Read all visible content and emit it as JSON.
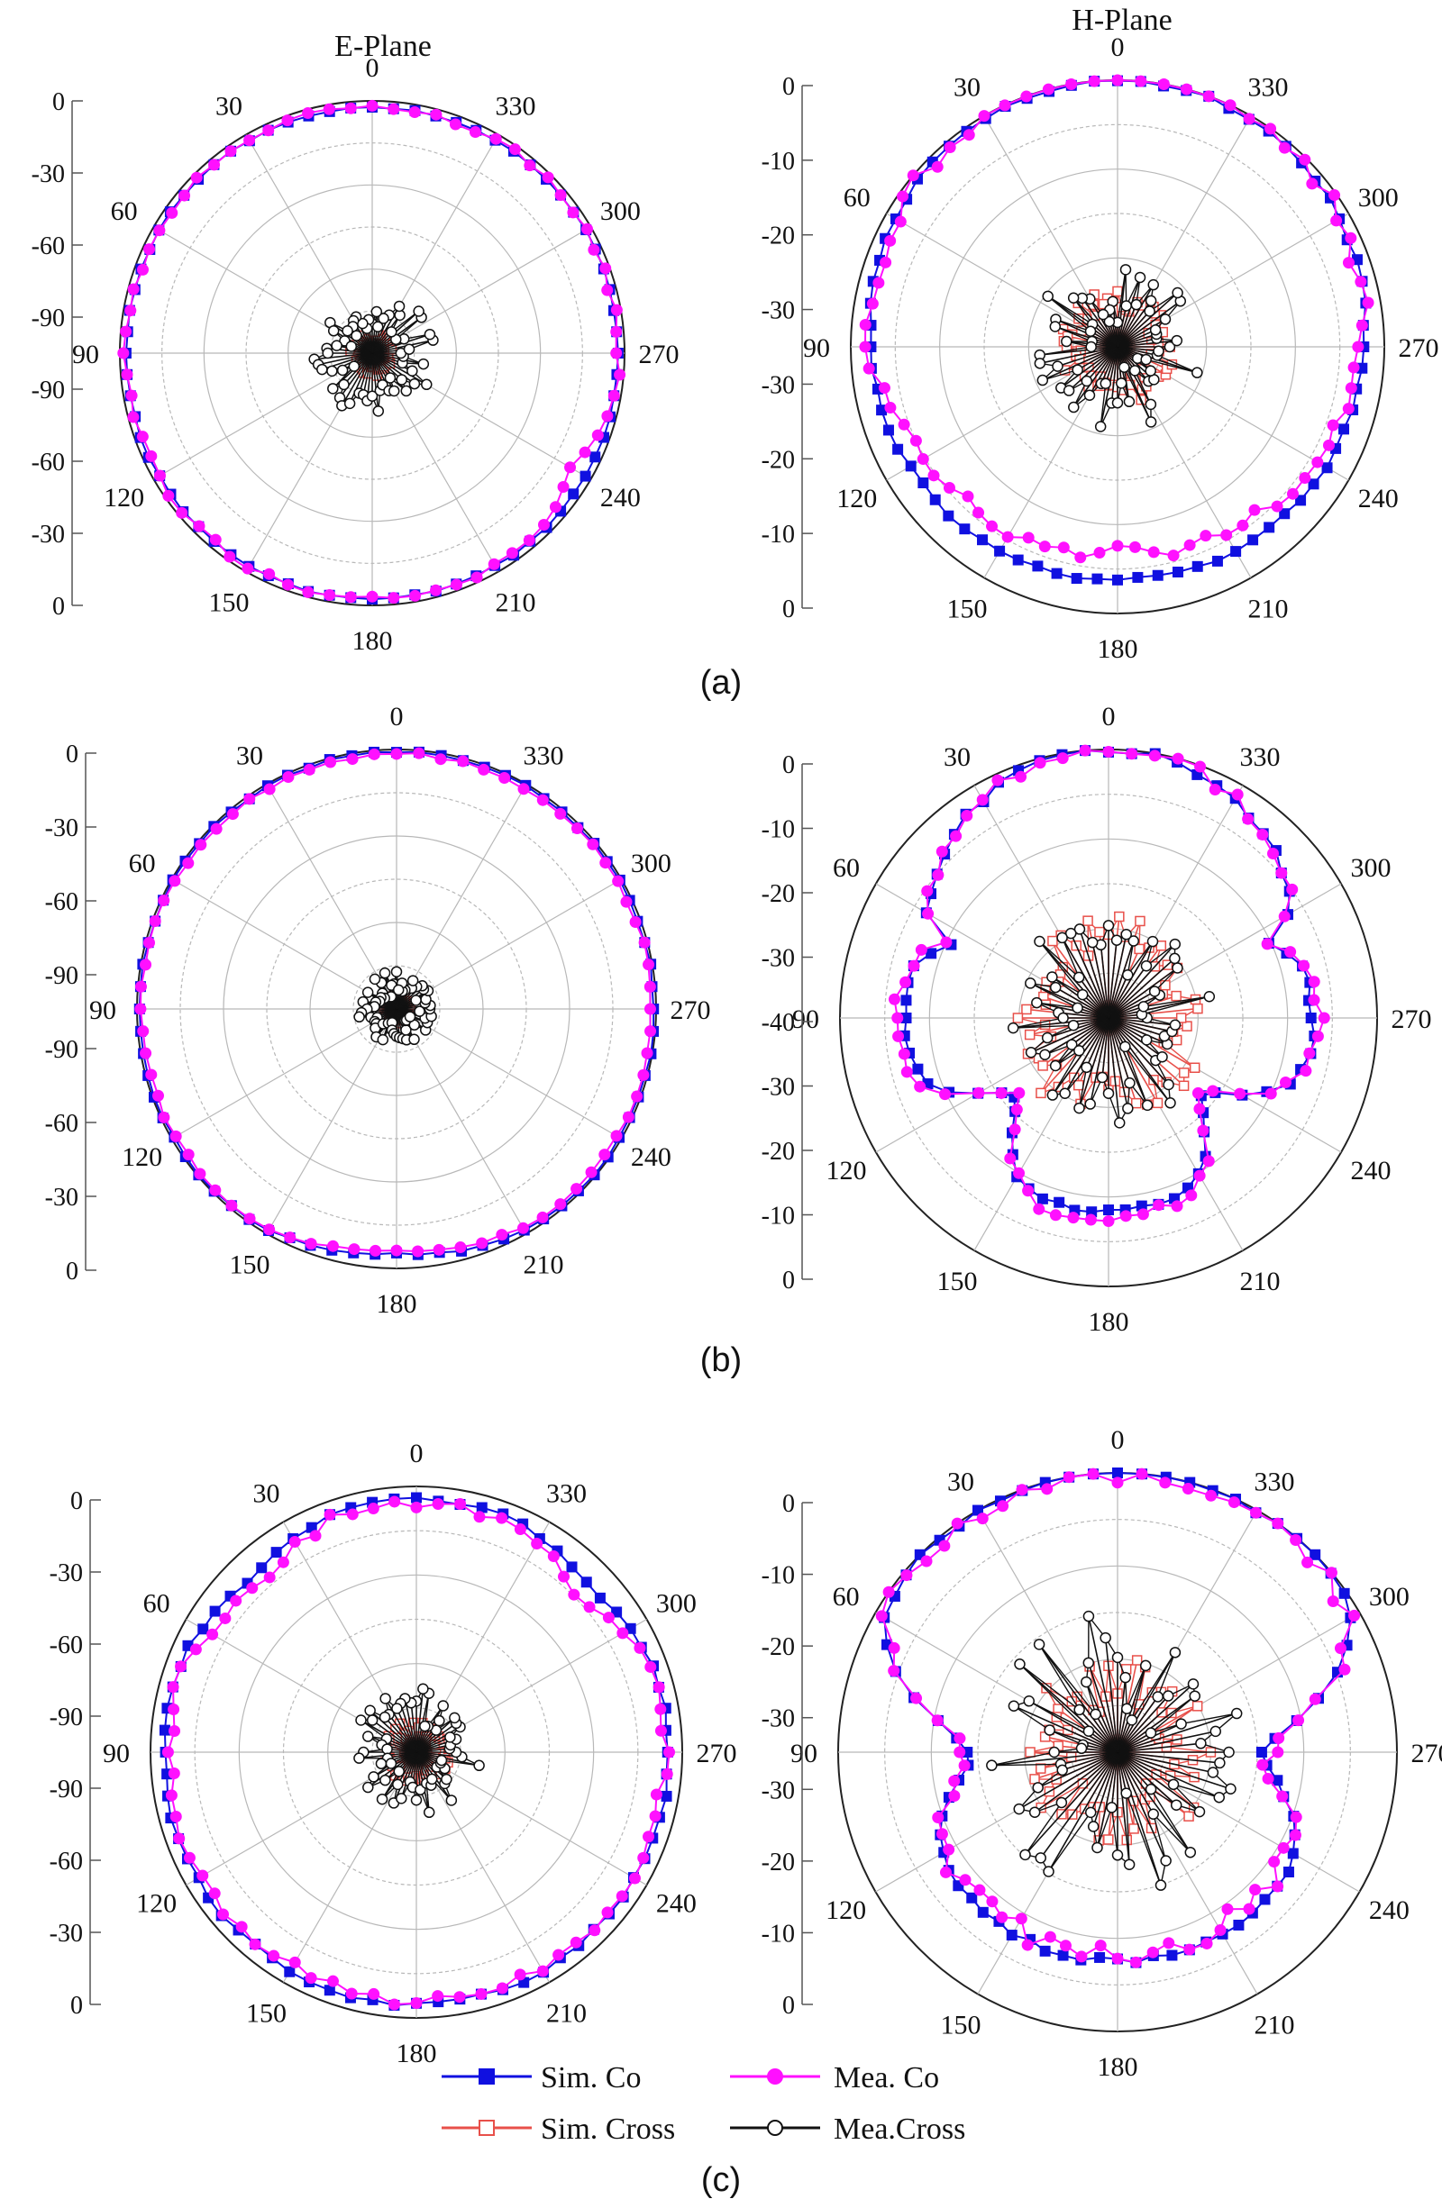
{
  "figure": {
    "captions": [
      "(a)",
      "(b)",
      "(c)"
    ],
    "column_titles": [
      "E-Plane",
      "H-Plane"
    ]
  },
  "legend": {
    "entries": [
      {
        "name": "Sim. Co",
        "color": "#1010e0",
        "marker": "filled-square"
      },
      {
        "name": "Mea. Co",
        "color": "#ff10ff",
        "marker": "filled-circle"
      },
      {
        "name": "Sim. Cross",
        "color": "#e8504a",
        "marker": "open-square"
      },
      {
        "name": "Mea.Cross",
        "color": "#111111",
        "marker": "open-circle"
      }
    ]
  },
  "chart_data": [
    {
      "type": "polar",
      "panel": "(a)",
      "title": "E-Plane",
      "angle_ticks": [
        "0",
        "30",
        "60",
        "90",
        "120",
        "150",
        "180",
        "210",
        "240",
        "270",
        "300",
        "330"
      ],
      "radial_ticks": [
        "0",
        "-30",
        "-60",
        "-90",
        "-90",
        "-60",
        "-30",
        "0"
      ],
      "rlim": [
        -120,
        0
      ],
      "series": [
        {
          "name": "Sim. Co",
          "shape": {
            "kind": "ellipse",
            "base": -3,
            "rx": 1.0,
            "ry": 1.0,
            "bump": []
          },
          "noise": 0.4
        },
        {
          "name": "Mea. Co",
          "shape": {
            "kind": "ellipse",
            "base": -3,
            "rx": 1.0,
            "ry": 1.0,
            "bump": [
              [
                240,
                -8,
                20
              ]
            ]
          },
          "noise": 1.5
        },
        {
          "name": "Sim. Cross",
          "shape": {
            "kind": "small",
            "base": -112
          },
          "noise": 3
        },
        {
          "name": "Mea.Cross",
          "shape": {
            "kind": "small",
            "base": -100
          },
          "noise": 10
        }
      ]
    },
    {
      "type": "polar",
      "panel": "(a)",
      "title": "H-Plane",
      "angle_ticks": [
        "0",
        "30",
        "60",
        "90",
        "120",
        "150",
        "180",
        "210",
        "240",
        "270",
        "300",
        "330"
      ],
      "radial_ticks": [
        "0",
        "-10",
        "-20",
        "-30",
        "-30",
        "-20",
        "-10",
        "0"
      ],
      "rlim": [
        -40,
        0
      ],
      "series": [
        {
          "name": "Sim. Co",
          "shape": {
            "kind": "front",
            "front": 0,
            "side": -3,
            "back": -5
          },
          "noise": 0.3
        },
        {
          "name": "Mea. Co",
          "shape": {
            "kind": "front",
            "front": 0,
            "side": -3,
            "back": -9
          },
          "noise": 1.2
        },
        {
          "name": "Sim. Cross",
          "shape": {
            "kind": "small",
            "base": -33
          },
          "noise": 2
        },
        {
          "name": "Mea.Cross",
          "shape": {
            "kind": "small",
            "base": -32
          },
          "noise": 5
        }
      ]
    },
    {
      "type": "polar",
      "panel": "(b)",
      "title": "E-Plane",
      "angle_ticks": [
        "0",
        "30",
        "60",
        "90",
        "120",
        "150",
        "180",
        "210",
        "240",
        "270",
        "300",
        "330"
      ],
      "radial_ticks": [
        "0",
        "-30",
        "-60",
        "-90",
        "-90",
        "-60",
        "-30",
        "0"
      ],
      "rlim": [
        -120,
        0
      ],
      "series": [
        {
          "name": "Sim. Co",
          "shape": {
            "kind": "ellipse",
            "base": -1,
            "rx": 1.0,
            "ry": 1.0,
            "bump": [
              [
                180,
                -6,
                35
              ]
            ]
          },
          "noise": 0.5
        },
        {
          "name": "Mea. Co",
          "shape": {
            "kind": "ellipse",
            "base": -2,
            "rx": 1.0,
            "ry": 1.0,
            "bump": [
              [
                180,
                -7,
                35
              ]
            ]
          },
          "noise": 0.8
        },
        {
          "name": "Sim. Cross",
          "shape": {
            "kind": "small",
            "base": -115
          },
          "noise": 2
        },
        {
          "name": "Mea.Cross",
          "shape": {
            "kind": "small",
            "base": -108
          },
          "noise": 6
        }
      ]
    },
    {
      "type": "polar",
      "panel": "(b)",
      "title": "H-Plane",
      "angle_ticks": [
        "0",
        "30",
        "60",
        "90",
        "120",
        "150",
        "180",
        "210",
        "240",
        "270",
        "300",
        "330"
      ],
      "radial_ticks": [
        "0",
        "-10",
        "-20",
        "-30",
        "-40",
        "-30",
        "-20",
        "-10",
        "0"
      ],
      "rlim": [
        -50,
        0
      ],
      "series": [
        {
          "name": "Sim. Co",
          "shape": {
            "kind": "clover",
            "front": 0,
            "null": -27,
            "side": -12,
            "back": -14
          },
          "noise": 0.6
        },
        {
          "name": "Mea. Co",
          "shape": {
            "kind": "clover",
            "front": 0,
            "null": -28,
            "side": -11,
            "back": -13
          },
          "noise": 1.2
        },
        {
          "name": "Sim. Cross",
          "shape": {
            "kind": "small",
            "base": -35
          },
          "noise": 4
        },
        {
          "name": "Mea.Cross",
          "shape": {
            "kind": "small",
            "base": -37
          },
          "noise": 7
        }
      ]
    },
    {
      "type": "polar",
      "panel": "(c)",
      "title": "E-Plane",
      "angle_ticks": [
        "0",
        "30",
        "60",
        "90",
        "120",
        "150",
        "180",
        "210",
        "240",
        "270",
        "300",
        "330"
      ],
      "radial_ticks": [
        "0",
        "-30",
        "-60",
        "-90",
        "-90",
        "-60",
        "-30",
        "0"
      ],
      "rlim": [
        -120,
        0
      ],
      "series": [
        {
          "name": "Sim. Co",
          "shape": {
            "kind": "ellipse",
            "base": -6,
            "rx": 1.0,
            "ry": 1.0,
            "bump": [
              [
                45,
                -6,
                25
              ],
              [
                315,
                -6,
                25
              ]
            ]
          },
          "noise": 1
        },
        {
          "name": "Mea. Co",
          "shape": {
            "kind": "ellipse",
            "base": -8,
            "rx": 1.0,
            "ry": 1.0,
            "bump": [
              [
                45,
                -9,
                25
              ],
              [
                315,
                -10,
                25
              ]
            ]
          },
          "noise": 2.5
        },
        {
          "name": "Sim. Cross",
          "shape": {
            "kind": "small",
            "base": -108
          },
          "noise": 3
        },
        {
          "name": "Mea.Cross",
          "shape": {
            "kind": "small",
            "base": -100
          },
          "noise": 9
        }
      ]
    },
    {
      "type": "polar",
      "panel": "(c)",
      "title": "H-Plane",
      "angle_ticks": [
        "0",
        "30",
        "60",
        "90",
        "120",
        "150",
        "180",
        "210",
        "240",
        "270",
        "300",
        "330"
      ],
      "radial_ticks": [
        "0",
        "-10",
        "-20",
        "-30",
        "-30",
        "-20",
        "-10",
        "0"
      ],
      "rlim": [
        -40,
        0
      ],
      "series": [
        {
          "name": "Sim. Co",
          "shape": {
            "kind": "dumbbell",
            "front": 0,
            "waist": -20,
            "back": -10
          },
          "noise": 0.5
        },
        {
          "name": "Mea. Co",
          "shape": {
            "kind": "dumbbell",
            "front": 0,
            "waist": -19,
            "back": -11
          },
          "noise": 1.6
        },
        {
          "name": "Sim. Cross",
          "shape": {
            "kind": "small",
            "base": -30
          },
          "noise": 4
        },
        {
          "name": "Mea.Cross",
          "shape": {
            "kind": "small",
            "base": -27
          },
          "noise": 8
        }
      ]
    }
  ]
}
